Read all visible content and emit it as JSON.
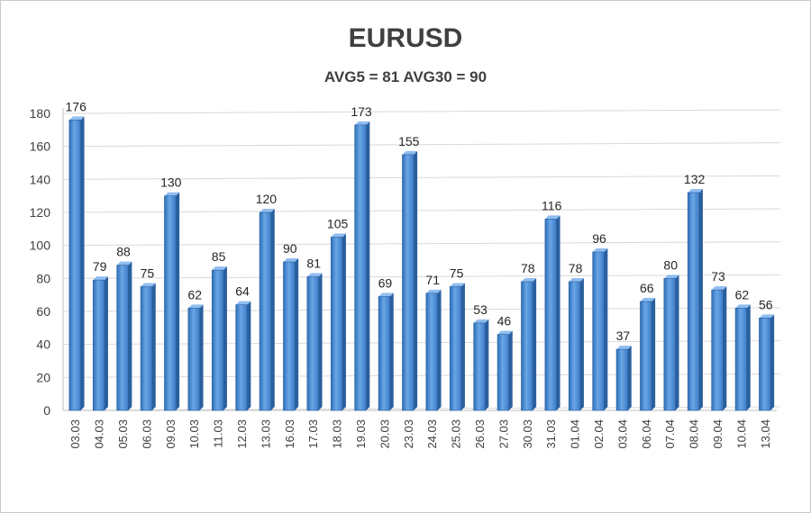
{
  "chart_data": {
    "type": "bar",
    "title": "EURUSD",
    "subtitle": "AVG5 = 81 AVG30 = 90",
    "xlabel": "",
    "ylabel": "",
    "ylim": [
      0,
      180
    ],
    "yticks": [
      0,
      20,
      40,
      60,
      80,
      100,
      120,
      140,
      160,
      180
    ],
    "grid": true,
    "legend": "none",
    "bar_color": "#4f8fd6",
    "categories": [
      "03.03",
      "04.03",
      "05.03",
      "06.03",
      "09.03",
      "10.03",
      "11.03",
      "12.03",
      "13.03",
      "16.03",
      "17.03",
      "18.03",
      "19.03",
      "20.03",
      "23.03",
      "24.03",
      "25.03",
      "26.03",
      "27.03",
      "30.03",
      "31.03",
      "01.04",
      "02.04",
      "03.04",
      "06.04",
      "07.04",
      "08.04",
      "09.04",
      "10.04",
      "13.04"
    ],
    "values": [
      176,
      79,
      88,
      75,
      130,
      62,
      85,
      64,
      120,
      90,
      81,
      105,
      173,
      69,
      155,
      71,
      75,
      53,
      46,
      78,
      116,
      78,
      96,
      37,
      66,
      80,
      132,
      73,
      62,
      56
    ]
  }
}
